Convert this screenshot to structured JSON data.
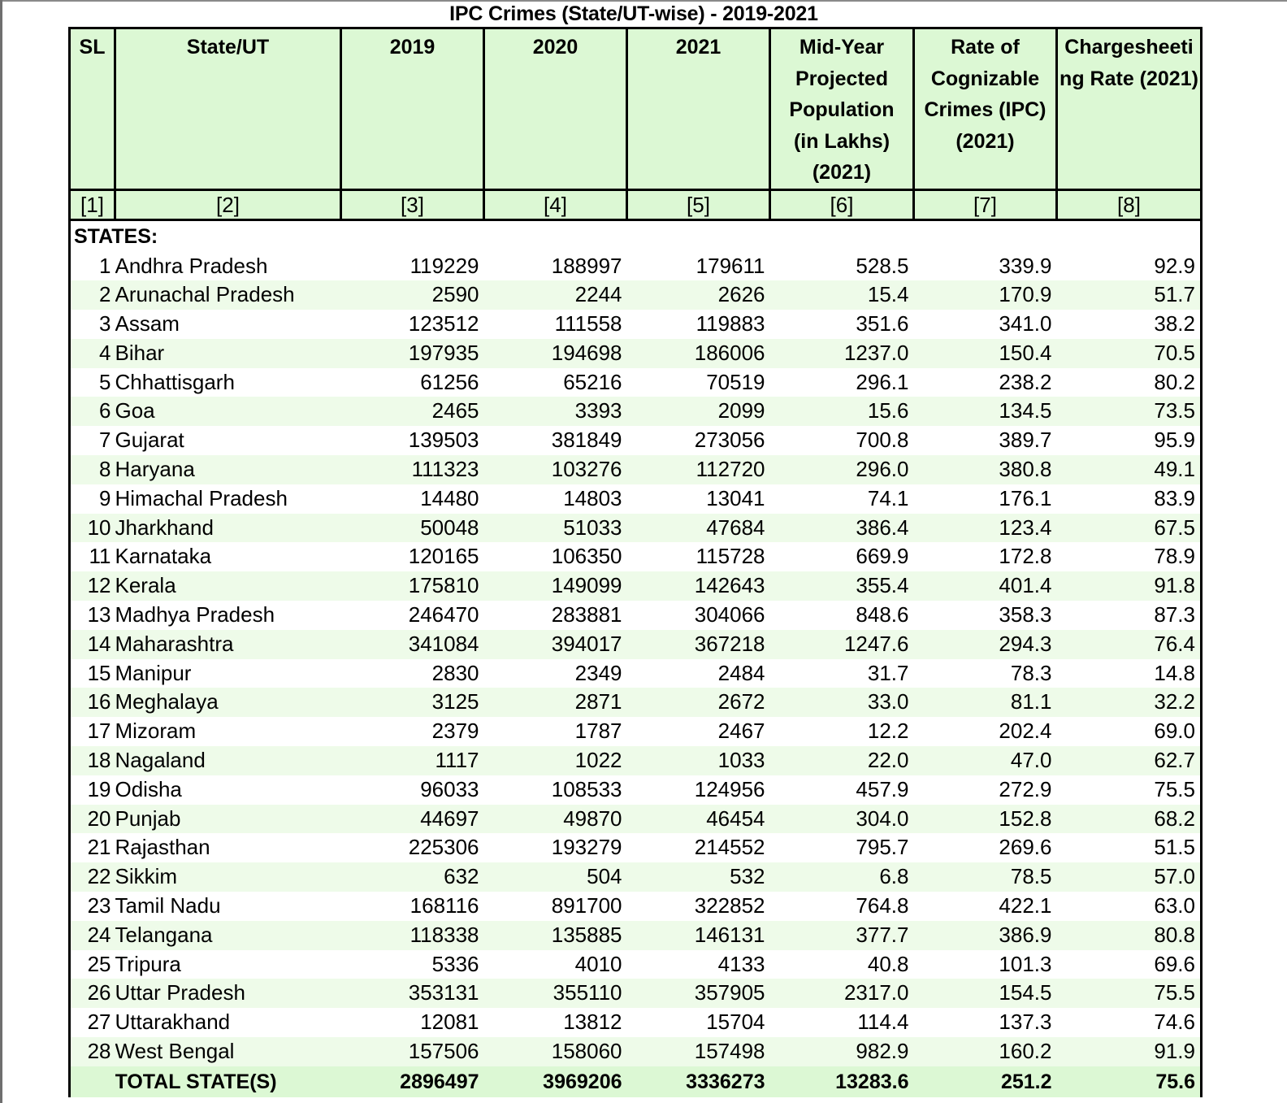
{
  "title": "IPC Crimes (State/UT-wise) - 2019-2021",
  "columns": [
    {
      "label": "SL",
      "num": "[1]"
    },
    {
      "label": "State/UT",
      "num": "[2]"
    },
    {
      "label": "2019",
      "num": "[3]"
    },
    {
      "label": "2020",
      "num": "[4]"
    },
    {
      "label": "2021",
      "num": "[5]"
    },
    {
      "label": "Mid-Year Projected Population (in Lakhs) (2021)",
      "num": "[6]"
    },
    {
      "label": "Rate of Cognizable Crimes (IPC) (2021)",
      "num": "[7]"
    },
    {
      "label": "Chargesheeting Rate (2021)",
      "num": "[8]"
    }
  ],
  "section_label": "STATES:",
  "rows": [
    [
      "1",
      "Andhra Pradesh",
      "119229",
      "188997",
      "179611",
      "528.5",
      "339.9",
      "92.9"
    ],
    [
      "2",
      "Arunachal Pradesh",
      "2590",
      "2244",
      "2626",
      "15.4",
      "170.9",
      "51.7"
    ],
    [
      "3",
      "Assam",
      "123512",
      "111558",
      "119883",
      "351.6",
      "341.0",
      "38.2"
    ],
    [
      "4",
      "Bihar",
      "197935",
      "194698",
      "186006",
      "1237.0",
      "150.4",
      "70.5"
    ],
    [
      "5",
      "Chhattisgarh",
      "61256",
      "65216",
      "70519",
      "296.1",
      "238.2",
      "80.2"
    ],
    [
      "6",
      "Goa",
      "2465",
      "3393",
      "2099",
      "15.6",
      "134.5",
      "73.5"
    ],
    [
      "7",
      "Gujarat",
      "139503",
      "381849",
      "273056",
      "700.8",
      "389.7",
      "95.9"
    ],
    [
      "8",
      "Haryana",
      "111323",
      "103276",
      "112720",
      "296.0",
      "380.8",
      "49.1"
    ],
    [
      "9",
      "Himachal Pradesh",
      "14480",
      "14803",
      "13041",
      "74.1",
      "176.1",
      "83.9"
    ],
    [
      "10",
      "Jharkhand",
      "50048",
      "51033",
      "47684",
      "386.4",
      "123.4",
      "67.5"
    ],
    [
      "11",
      "Karnataka",
      "120165",
      "106350",
      "115728",
      "669.9",
      "172.8",
      "78.9"
    ],
    [
      "12",
      "Kerala",
      "175810",
      "149099",
      "142643",
      "355.4",
      "401.4",
      "91.8"
    ],
    [
      "13",
      "Madhya Pradesh",
      "246470",
      "283881",
      "304066",
      "848.6",
      "358.3",
      "87.3"
    ],
    [
      "14",
      "Maharashtra",
      "341084",
      "394017",
      "367218",
      "1247.6",
      "294.3",
      "76.4"
    ],
    [
      "15",
      "Manipur",
      "2830",
      "2349",
      "2484",
      "31.7",
      "78.3",
      "14.8"
    ],
    [
      "16",
      "Meghalaya",
      "3125",
      "2871",
      "2672",
      "33.0",
      "81.1",
      "32.2"
    ],
    [
      "17",
      "Mizoram",
      "2379",
      "1787",
      "2467",
      "12.2",
      "202.4",
      "69.0"
    ],
    [
      "18",
      "Nagaland",
      "1117",
      "1022",
      "1033",
      "22.0",
      "47.0",
      "62.7"
    ],
    [
      "19",
      "Odisha",
      "96033",
      "108533",
      "124956",
      "457.9",
      "272.9",
      "75.5"
    ],
    [
      "20",
      "Punjab",
      "44697",
      "49870",
      "46454",
      "304.0",
      "152.8",
      "68.2"
    ],
    [
      "21",
      "Rajasthan",
      "225306",
      "193279",
      "214552",
      "795.7",
      "269.6",
      "51.5"
    ],
    [
      "22",
      "Sikkim",
      "632",
      "504",
      "532",
      "6.8",
      "78.5",
      "57.0"
    ],
    [
      "23",
      "Tamil Nadu",
      "168116",
      "891700",
      "322852",
      "764.8",
      "422.1",
      "63.0"
    ],
    [
      "24",
      "Telangana",
      "118338",
      "135885",
      "146131",
      "377.7",
      "386.9",
      "80.8"
    ],
    [
      "25",
      "Tripura",
      "5336",
      "4010",
      "4133",
      "40.8",
      "101.3",
      "69.6"
    ],
    [
      "26",
      "Uttar Pradesh",
      "353131",
      "355110",
      "357905",
      "2317.0",
      "154.5",
      "75.5"
    ],
    [
      "27",
      "Uttarakhand",
      "12081",
      "13812",
      "15704",
      "114.4",
      "137.3",
      "74.6"
    ],
    [
      "28",
      "West Bengal",
      "157506",
      "158060",
      "157498",
      "982.9",
      "160.2",
      "91.9"
    ]
  ],
  "total": [
    "",
    "TOTAL STATE(S)",
    "2896497",
    "3969206",
    "3336273",
    "13283.6",
    "251.2",
    "75.6"
  ],
  "colors": {
    "header_bg": "#dcf8d4",
    "alt_row_bg": "#eefbe9",
    "border": "#000000"
  }
}
